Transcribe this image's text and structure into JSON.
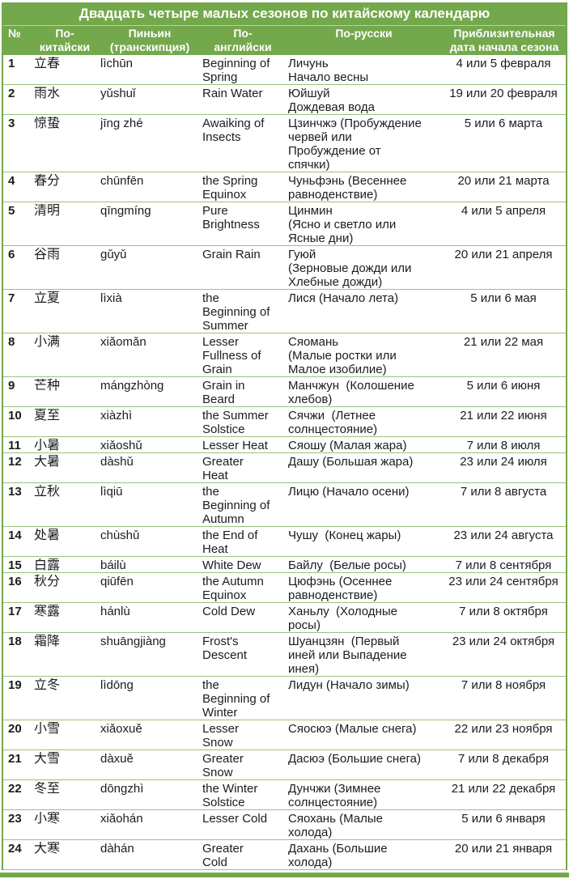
{
  "colors": {
    "band_green": "#74a84c",
    "row_line_green": "#9cc27c",
    "header_text": "#ffffff",
    "body_text": "#1c1c1c"
  },
  "table": {
    "title": "Двадцать четыре малых сезонов по китайскому календарю",
    "columns": {
      "num": "№",
      "chinese": "По-\nкитайски",
      "pinyin": "Пиньин\n(транскипция)",
      "english": "По-\nанглийски",
      "russian": "По-русски",
      "date": "Приблизительная\nдата начала сезона"
    },
    "rows": [
      {
        "num": "1",
        "chinese": "立春",
        "pinyin": "lìchūn",
        "english": "Beginning of\nSpring",
        "russian": "Личунь\nНачало весны",
        "date": "4 или 5 февраля"
      },
      {
        "num": "2",
        "chinese": "雨水",
        "pinyin": "yǔshuǐ",
        "english": "Rain Water",
        "russian": "Юйшуй\nДождевая вода",
        "date": "19 или 20 февраля"
      },
      {
        "num": "3",
        "chinese": "惊蛰",
        "pinyin": "jīng zhé",
        "english": "Awaiking of\nInsects",
        "russian": "Цзинчжэ (Пробуждение\nчервей или\nПробуждение от\nспячки)",
        "date": "5 или 6 марта"
      },
      {
        "num": "4",
        "chinese": "春分",
        "pinyin": "chūnfēn",
        "english": "the Spring\nEquinox",
        "russian": "Чуньфэнь (Весеннее\nравноденствие)",
        "date": "20 или 21 марта"
      },
      {
        "num": "5",
        "chinese": "清明",
        "pinyin": "qīngmíng",
        "english": "Pure\nBrightness",
        "russian": "Цинмин\n(Ясно и светло или\nЯсные дни)",
        "date": "4 или 5 апреля"
      },
      {
        "num": "6",
        "chinese": "谷雨",
        "pinyin": "gǔyǔ",
        "english": "Grain Rain",
        "russian": "Гуюй\n(Зерновые дожди или\nХлебные дожди)",
        "date": "20 или 21 апреля"
      },
      {
        "num": "7",
        "chinese": "立夏",
        "pinyin": "lìxià",
        "english": "the\nBeginning of\nSummer",
        "russian": "Лися (Начало лета)",
        "date": "5 или 6 мая"
      },
      {
        "num": "8",
        "chinese": "小满",
        "pinyin": "xiǎomǎn",
        "english": "Lesser\nFullness of\nGrain",
        "russian": "Сяомань\n(Малые ростки или\nМалое изобилие)",
        "date": "21 или 22 мая"
      },
      {
        "num": "9",
        "chinese": "芒种",
        "pinyin": "mángzhòng",
        "english": "Grain in\nBeard",
        "russian": "Манчжун  (Колошение\nхлебов)",
        "date": "5 или 6 июня"
      },
      {
        "num": "10",
        "chinese": "夏至",
        "pinyin": "xiàzhì",
        "english": "the Summer\nSolstice",
        "russian": "Сячжи  (Летнее\nсолнцестояние)",
        "date": "21 или 22 июня"
      },
      {
        "num": "11",
        "chinese": "小暑",
        "pinyin": "xiǎoshǔ",
        "english": "Lesser Heat",
        "russian": "Сяошу (Малая жара)",
        "date": "7 или 8 июля"
      },
      {
        "num": "12",
        "chinese": "大暑",
        "pinyin": "dàshǔ",
        "english": "Greater\nHeat",
        "russian": "Дашу (Большая жара)",
        "date": "23 или 24 июля"
      },
      {
        "num": "13",
        "chinese": "立秋",
        "pinyin": "lìqiū",
        "english": "the\nBeginning of\nAutumn",
        "russian": "Лицю (Начало осени)",
        "date": "7 или 8 августа"
      },
      {
        "num": "14",
        "chinese": "处暑",
        "pinyin": "chùshǔ",
        "english": "the End of\nHeat",
        "russian": "Чушу  (Конец жары)",
        "date": "23 или 24 августа"
      },
      {
        "num": "15",
        "chinese": "白露",
        "pinyin": "báilù",
        "english": "White Dew",
        "russian": "Байлу  (Белые росы)",
        "date": "7 или 8 сентября"
      },
      {
        "num": "16",
        "chinese": "秋分",
        "pinyin": "qiūfēn",
        "english": "the Autumn\nEquinox",
        "russian": "Цюфэнь (Осеннее\nравноденствие)",
        "date": "23 или 24 сентября"
      },
      {
        "num": "17",
        "chinese": "寒露",
        "pinyin": "hánlù",
        "english": "Cold Dew",
        "russian": "Ханьлу  (Холодные\nросы)",
        "date": "7 или 8 октября"
      },
      {
        "num": "18",
        "chinese": "霜降",
        "pinyin": "shuāngjiàng",
        "english": "Frost's\nDescent",
        "russian": "Шуанцзян  (Первый\nиней или Выпадение\nинея)",
        "date": "23 или 24 октября"
      },
      {
        "num": "19",
        "chinese": "立冬",
        "pinyin": "lìdōng",
        "english": "the\nBeginning of\nWinter",
        "russian": "Лидун (Начало зимы)",
        "date": "7 или 8 ноября"
      },
      {
        "num": "20",
        "chinese": "小雪",
        "pinyin": "xiǎoxuě",
        "english": "Lesser\nSnow",
        "russian": "Сяосюэ (Малые снега)",
        "date": "22 или 23 ноября"
      },
      {
        "num": "21",
        "chinese": "大雪",
        "pinyin": "dàxuě",
        "english": "Greater\nSnow",
        "russian": "Дасюэ (Большие снега)",
        "date": "7 или 8 декабря"
      },
      {
        "num": "22",
        "chinese": "冬至",
        "pinyin": "dōngzhì",
        "english": "the Winter\nSolstice",
        "russian": "Дунчжи (Зимнее\nсолнцестояние)",
        "date": "21 или 22 декабря"
      },
      {
        "num": "23",
        "chinese": "小寒",
        "pinyin": "xiǎohán",
        "english": "Lesser Cold",
        "russian": "Сяохань (Малые\nхолода)",
        "date": "5 или 6 января"
      },
      {
        "num": "24",
        "chinese": "大寒",
        "pinyin": "dàhán",
        "english": "Greater\nCold",
        "russian": "Дахань (Большие\nхолода)",
        "date": "20 или 21 января"
      }
    ]
  }
}
